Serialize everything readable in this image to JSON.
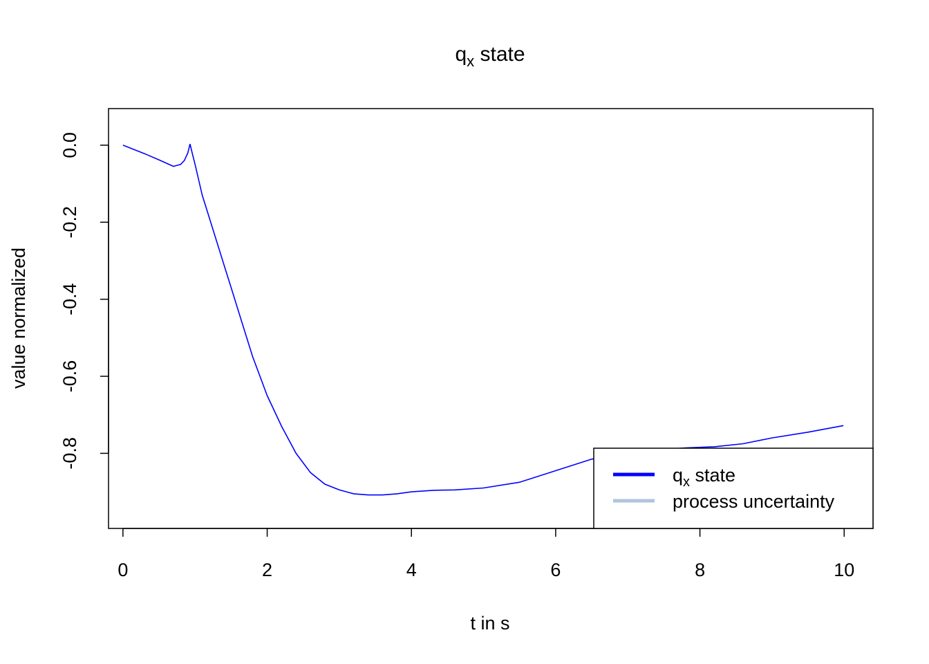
{
  "chart_data": {
    "type": "line",
    "title": {
      "base": "q",
      "subscript": "x",
      "rest": " state"
    },
    "xlabel": "t in s",
    "ylabel": "value normalized",
    "xlim": [
      -0.2,
      10.4
    ],
    "ylim": [
      -0.995,
      0.095
    ],
    "x_ticks": [
      0,
      2,
      4,
      6,
      8,
      10
    ],
    "x_tick_labels": [
      "0",
      "2",
      "4",
      "6",
      "8",
      "10"
    ],
    "y_ticks": [
      0.0,
      -0.2,
      -0.4,
      -0.6,
      -0.8
    ],
    "y_tick_labels": [
      "0.0",
      "-0.2",
      "-0.4",
      "-0.6",
      "-0.8"
    ],
    "grid": false,
    "legend_position": "bottom-right",
    "series": [
      {
        "name": "q_x state",
        "label": {
          "base": "q",
          "subscript": "x",
          "rest": " state"
        },
        "color": "#0000ff",
        "x": [
          0.0,
          0.3,
          0.5,
          0.7,
          0.8,
          0.85,
          0.9,
          0.93,
          0.96,
          1.0,
          1.05,
          1.1,
          1.2,
          1.3,
          1.4,
          1.5,
          1.6,
          1.7,
          1.8,
          1.9,
          2.0,
          2.2,
          2.4,
          2.6,
          2.8,
          3.0,
          3.2,
          3.4,
          3.6,
          3.8,
          4.0,
          4.3,
          4.6,
          5.0,
          5.5,
          6.0,
          6.5,
          7.0,
          7.5,
          7.8,
          8.2,
          8.6,
          9.0,
          9.5,
          9.99
        ],
        "y": [
          0.0,
          -0.022,
          -0.038,
          -0.055,
          -0.05,
          -0.04,
          -0.02,
          0.003,
          -0.02,
          -0.05,
          -0.09,
          -0.13,
          -0.19,
          -0.25,
          -0.31,
          -0.37,
          -0.43,
          -0.49,
          -0.55,
          -0.6,
          -0.65,
          -0.73,
          -0.8,
          -0.85,
          -0.88,
          -0.895,
          -0.905,
          -0.908,
          -0.908,
          -0.905,
          -0.9,
          -0.896,
          -0.895,
          -0.89,
          -0.875,
          -0.845,
          -0.815,
          -0.8,
          -0.79,
          -0.786,
          -0.783,
          -0.775,
          -0.76,
          -0.745,
          -0.728
        ]
      },
      {
        "name": "process uncertainty",
        "label": {
          "base": "process uncertainty",
          "subscript": "",
          "rest": ""
        },
        "color": "#b0c4de",
        "x": [],
        "y": []
      }
    ]
  }
}
